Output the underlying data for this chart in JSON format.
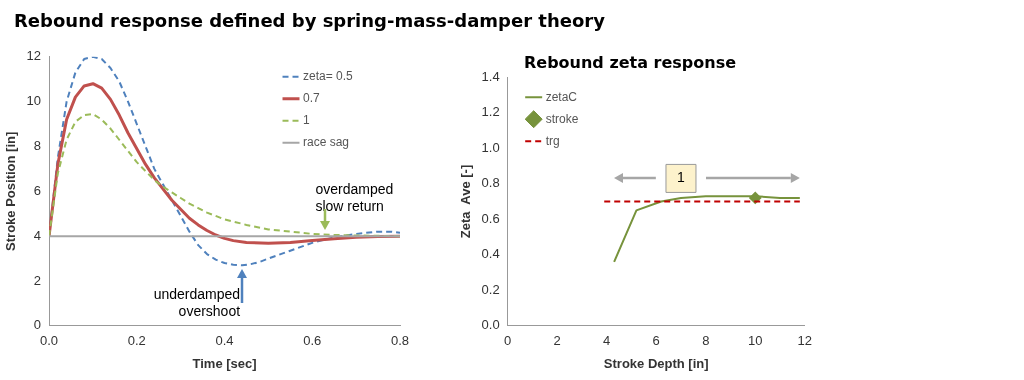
{
  "chart_data": [
    {
      "type": "line",
      "title": "Rebound response defined by spring-mass-damper theory",
      "xlabel": "Time [sec]",
      "ylabel": "Stroke Position [in]",
      "xlim": [
        0,
        0.8
      ],
      "xticks": [
        {
          "value": 0,
          "label": "0.0"
        },
        {
          "value": 0.2,
          "label": "0.2"
        },
        {
          "value": 0.4,
          "label": "0.4"
        },
        {
          "value": 0.6,
          "label": "0.6"
        },
        {
          "value": 0.8,
          "label": "0.8"
        }
      ],
      "ylim": [
        0,
        12
      ],
      "yticks": [
        0,
        2,
        4,
        6,
        8,
        10,
        12
      ],
      "grid": false,
      "legend": "top right",
      "marker": "none",
      "series": [
        {
          "name": "zeta= 0.5",
          "color": "#4f81bd",
          "line_style": "dashed",
          "x": [
            0,
            0.02,
            0.04,
            0.06,
            0.08,
            0.1,
            0.12,
            0.14,
            0.16,
            0.18,
            0.2,
            0.22,
            0.24,
            0.26,
            0.28,
            0.3,
            0.32,
            0.34,
            0.36,
            0.38,
            0.4,
            0.42,
            0.44,
            0.46,
            0.48,
            0.5,
            0.55,
            0.6,
            0.65,
            0.7,
            0.75,
            0.78,
            0.8
          ],
          "values": [
            4,
            7.5,
            10,
            11.3,
            11.9,
            12,
            11.9,
            11.5,
            10.9,
            10,
            9,
            8,
            7,
            6.3,
            5.6,
            4.9,
            4.2,
            3.6,
            3.2,
            2.95,
            2.8,
            2.72,
            2.7,
            2.75,
            2.85,
            3,
            3.35,
            3.7,
            3.95,
            4.1,
            4.2,
            4.2,
            4.15
          ]
        },
        {
          "name": "0.7",
          "color": "#c0504d",
          "line_style": "solid",
          "x": [
            0,
            0.02,
            0.04,
            0.06,
            0.08,
            0.1,
            0.12,
            0.14,
            0.16,
            0.18,
            0.2,
            0.22,
            0.24,
            0.26,
            0.28,
            0.3,
            0.32,
            0.34,
            0.36,
            0.38,
            0.4,
            0.42,
            0.45,
            0.5,
            0.55,
            0.6,
            0.65,
            0.7,
            0.75,
            0.8
          ],
          "values": [
            4,
            7.2,
            9.2,
            10.2,
            10.7,
            10.8,
            10.6,
            10.1,
            9.4,
            8.6,
            7.9,
            7.2,
            6.6,
            6.1,
            5.6,
            5.2,
            4.8,
            4.5,
            4.25,
            4.05,
            3.9,
            3.8,
            3.72,
            3.68,
            3.72,
            3.8,
            3.88,
            3.95,
            3.98,
            4
          ]
        },
        {
          "name": "1",
          "color": "#9bbb59",
          "line_style": "dashed",
          "x": [
            0,
            0.02,
            0.04,
            0.06,
            0.08,
            0.1,
            0.12,
            0.14,
            0.16,
            0.18,
            0.2,
            0.22,
            0.24,
            0.26,
            0.28,
            0.3,
            0.32,
            0.34,
            0.36,
            0.4,
            0.45,
            0.5,
            0.55,
            0.6,
            0.65,
            0.7,
            0.8
          ],
          "values": [
            4,
            6.8,
            8.3,
            9.1,
            9.4,
            9.45,
            9.2,
            8.8,
            8.3,
            7.8,
            7.3,
            6.9,
            6.5,
            6.2,
            5.95,
            5.7,
            5.45,
            5.25,
            5.05,
            4.75,
            4.5,
            4.3,
            4.2,
            4.1,
            4.05,
            4.03,
            4
          ]
        },
        {
          "name": "race sag",
          "color": "#a6a6a6",
          "line_style": "solid",
          "x": [
            0,
            0.8
          ],
          "values": [
            4,
            4
          ]
        }
      ],
      "annotations": [
        {
          "text": "overdamped\nslow return",
          "x": 0.63,
          "y": 4.1
        },
        {
          "text": "underdamped\novershoot",
          "x": 0.44,
          "y": 2.7
        }
      ]
    },
    {
      "type": "line",
      "title": "Rebound zeta response",
      "xlabel": "Stroke Depth [in]",
      "ylabel": "Zeta  Ave [-]",
      "xlim": [
        0,
        12
      ],
      "xticks": [
        0,
        2,
        4,
        6,
        8,
        10,
        12
      ],
      "ylim": [
        0,
        1.4
      ],
      "yticks": [
        {
          "value": 0,
          "label": "0.0"
        },
        {
          "value": 0.2,
          "label": "0.2"
        },
        {
          "value": 0.4,
          "label": "0.4"
        },
        {
          "value": 0.6,
          "label": "0.6"
        },
        {
          "value": 0.8,
          "label": "0.8"
        },
        {
          "value": 1,
          "label": "1.0"
        },
        {
          "value": 1.2,
          "label": "1.2"
        },
        {
          "value": 1.4,
          "label": "1.4"
        }
      ],
      "grid": false,
      "legend": "top left",
      "series": [
        {
          "name": "zetaC",
          "color": "#77933c",
          "type": "line",
          "marker": "none",
          "line_style": "solid",
          "x": [
            4.3,
            5.2,
            6.2,
            7,
            8,
            9,
            10,
            11,
            11.8
          ],
          "values": [
            0.36,
            0.65,
            0.7,
            0.72,
            0.73,
            0.73,
            0.73,
            0.72,
            0.72
          ]
        },
        {
          "name": "stroke",
          "color": "#77933c",
          "type": "scatter",
          "marker": "diamond",
          "x": [
            10
          ],
          "values": [
            0.72
          ]
        },
        {
          "name": "trg",
          "color": "#c00000",
          "type": "line",
          "marker": "none",
          "line_style": "dashed",
          "x": [
            3.9,
            11.8
          ],
          "values": [
            0.7,
            0.7
          ]
        }
      ],
      "annotations": [
        {
          "text": "1",
          "x": 7,
          "y": 0.83
        }
      ]
    }
  ]
}
